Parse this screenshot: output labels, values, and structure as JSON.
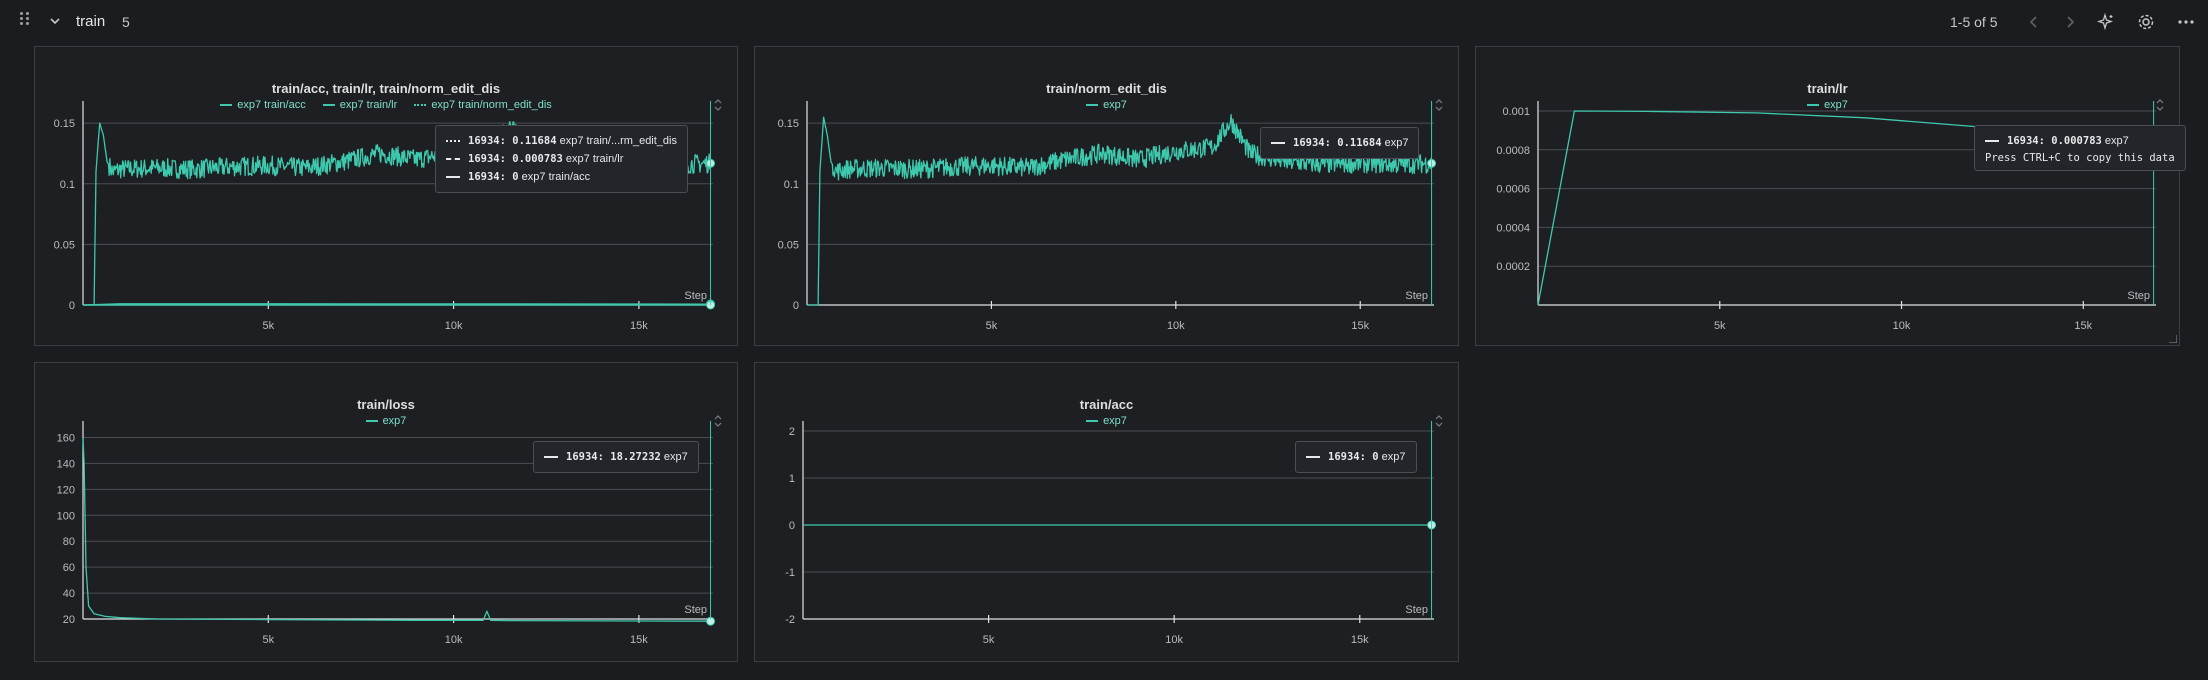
{
  "section": {
    "title": "train",
    "count": "5",
    "pager": "1-5 of 5"
  },
  "toolbar": {
    "icons": [
      "drag-handle-icon",
      "chevron-down-icon",
      "chevron-left-icon",
      "chevron-right-icon",
      "sparkle-icon",
      "gear-icon",
      "more-icon"
    ]
  },
  "colors": {
    "series": "#3ec9ae",
    "background": "#1a1c1f",
    "panel": "#1d1f22",
    "grid": "#4a4e55"
  },
  "panels": [
    {
      "title": "train/acc, train/lr, train/norm_edit_dis",
      "legend": [
        "exp7 train/acc",
        "exp7 train/lr",
        "exp7 train/norm_edit_dis"
      ],
      "step_label": "Step",
      "tooltip": [
        {
          "step": "16934",
          "value": "0.11684",
          "name": "exp7 train/...rm_edit_dis"
        },
        {
          "step": "16934",
          "value": "0.000783",
          "name": "exp7 train/lr"
        },
        {
          "step": "16934",
          "value": "0",
          "name": "exp7 train/acc"
        }
      ]
    },
    {
      "title": "train/norm_edit_dis",
      "legend": [
        "exp7"
      ],
      "step_label": "Step",
      "tooltip": [
        {
          "step": "16934",
          "value": "0.11684",
          "name": "exp7"
        }
      ]
    },
    {
      "title": "train/lr",
      "legend": [
        "exp7"
      ],
      "step_label": "Step",
      "tooltip": [
        {
          "step": "16934",
          "value": "0.000783",
          "name": "exp7"
        }
      ],
      "hint": "Press CTRL+C to copy this data"
    },
    {
      "title": "train/loss",
      "legend": [
        "exp7"
      ],
      "step_label": "Step",
      "tooltip": [
        {
          "step": "16934",
          "value": "18.27232",
          "name": "exp7"
        }
      ]
    },
    {
      "title": "train/acc",
      "legend": [
        "exp7"
      ],
      "step_label": "Step",
      "tooltip": [
        {
          "step": "16934",
          "value": "0",
          "name": "exp7"
        }
      ]
    }
  ],
  "chart_data": [
    {
      "type": "line",
      "x_ticks": [
        5000,
        10000,
        15000
      ],
      "x_tick_labels": [
        "5k",
        "10k",
        "15k"
      ],
      "xlim": [
        0,
        17000
      ],
      "y_ticks": [
        0,
        0.05,
        0.1,
        0.15
      ],
      "y_tick_labels": [
        "0",
        "0.05",
        "0.1",
        "0.15"
      ],
      "ylim": [
        0,
        0.16
      ],
      "series": [
        {
          "name": "exp7 train/norm_edit_dis",
          "style": "dotted",
          "noisy": true,
          "x": [
            0,
            300,
            350,
            450,
            550,
            650,
            800,
            1000,
            2000,
            3000,
            4000,
            5000,
            6000,
            7000,
            8000,
            9000,
            10000,
            11000,
            11500,
            12000,
            13000,
            14000,
            15000,
            16000,
            16934
          ],
          "y": [
            0,
            0,
            0.11,
            0.15,
            0.14,
            0.118,
            0.11,
            0.112,
            0.113,
            0.112,
            0.114,
            0.115,
            0.113,
            0.118,
            0.125,
            0.12,
            0.126,
            0.128,
            0.15,
            0.125,
            0.118,
            0.116,
            0.117,
            0.116,
            0.11684
          ]
        },
        {
          "name": "exp7 train/lr",
          "style": "dashed",
          "noisy": false,
          "x": [
            0,
            1000,
            5000,
            10000,
            16934
          ],
          "y": [
            0,
            0.001,
            0.00099,
            0.00093,
            0.000783
          ]
        },
        {
          "name": "exp7 train/acc",
          "style": "solid",
          "noisy": false,
          "x": [
            0,
            16934
          ],
          "y": [
            0,
            0
          ]
        }
      ]
    },
    {
      "type": "line",
      "x_ticks": [
        5000,
        10000,
        15000
      ],
      "x_tick_labels": [
        "5k",
        "10k",
        "15k"
      ],
      "xlim": [
        0,
        17000
      ],
      "y_ticks": [
        0,
        0.05,
        0.1,
        0.15
      ],
      "y_tick_labels": [
        "0",
        "0.05",
        "0.1",
        "0.15"
      ],
      "ylim": [
        0,
        0.16
      ],
      "series": [
        {
          "name": "exp7",
          "style": "solid",
          "noisy": true,
          "x": [
            0,
            300,
            350,
            450,
            550,
            650,
            800,
            1000,
            2000,
            3000,
            4000,
            5000,
            6000,
            7000,
            8000,
            9000,
            10000,
            11000,
            11500,
            12000,
            13000,
            14000,
            15000,
            16000,
            16934
          ],
          "y": [
            0,
            0,
            0.11,
            0.155,
            0.14,
            0.118,
            0.11,
            0.112,
            0.113,
            0.112,
            0.114,
            0.115,
            0.113,
            0.12,
            0.125,
            0.12,
            0.127,
            0.13,
            0.152,
            0.125,
            0.118,
            0.116,
            0.117,
            0.116,
            0.11684
          ]
        }
      ]
    },
    {
      "type": "line",
      "x_ticks": [
        5000,
        10000,
        15000
      ],
      "x_tick_labels": [
        "5k",
        "10k",
        "15k"
      ],
      "xlim": [
        0,
        17000
      ],
      "y_ticks": [
        0.0002,
        0.0004,
        0.0006,
        0.0008,
        0.001
      ],
      "y_tick_labels": [
        "0.0002",
        "0.0004",
        "0.0006",
        "0.0008",
        "0.001"
      ],
      "ylim": [
        0,
        0.001
      ],
      "series": [
        {
          "name": "exp7",
          "style": "solid",
          "noisy": false,
          "x": [
            0,
            1000,
            3000,
            6000,
            9000,
            12000,
            14000,
            16934
          ],
          "y": [
            0,
            0.001,
            0.000998,
            0.00099,
            0.000965,
            0.00092,
            0.00087,
            0.000783
          ]
        }
      ]
    },
    {
      "type": "line",
      "x_ticks": [
        5000,
        10000,
        15000
      ],
      "x_tick_labels": [
        "5k",
        "10k",
        "15k"
      ],
      "xlim": [
        0,
        17000
      ],
      "y_ticks": [
        20,
        40,
        60,
        80,
        100,
        120,
        140,
        160
      ],
      "y_tick_labels": [
        "20",
        "40",
        "60",
        "80",
        "100",
        "120",
        "140",
        "160"
      ],
      "ylim": [
        20,
        165
      ],
      "series": [
        {
          "name": "exp7",
          "style": "solid",
          "noisy": false,
          "x": [
            0,
            30,
            80,
            150,
            300,
            600,
            1000,
            2000,
            5000,
            9000,
            10800,
            10900,
            11000,
            11500,
            14000,
            16934
          ],
          "y": [
            160,
            140,
            60,
            30,
            24,
            22,
            21,
            20,
            19.5,
            19,
            19,
            26,
            19,
            18.8,
            18.5,
            18.27232
          ]
        }
      ]
    },
    {
      "type": "line",
      "x_ticks": [
        5000,
        10000,
        15000
      ],
      "x_tick_labels": [
        "5k",
        "10k",
        "15k"
      ],
      "xlim": [
        0,
        17000
      ],
      "y_ticks": [
        -2,
        -1,
        0,
        1,
        2
      ],
      "y_tick_labels": [
        "-2",
        "-1",
        "0",
        "1",
        "2"
      ],
      "ylim": [
        -2,
        2
      ],
      "series": [
        {
          "name": "exp7",
          "style": "solid",
          "noisy": false,
          "x": [
            0,
            16934
          ],
          "y": [
            0,
            0
          ]
        }
      ]
    }
  ]
}
